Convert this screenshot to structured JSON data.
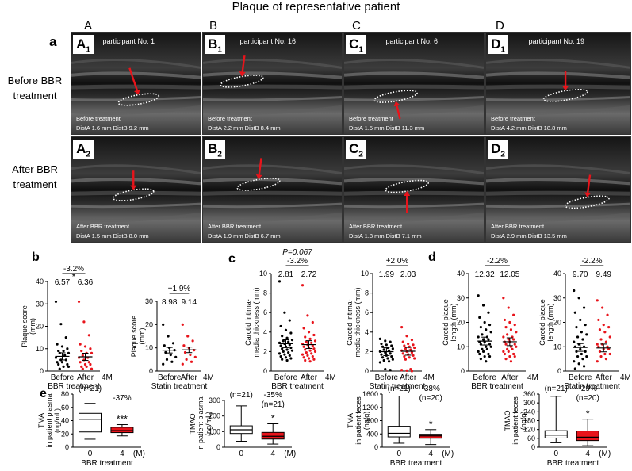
{
  "title": "Plaque of representative patient",
  "column_headers": [
    "A",
    "B",
    "C",
    "D"
  ],
  "section_labels": {
    "a": "a",
    "b": "b",
    "c": "c",
    "d": "d",
    "e": "e"
  },
  "row_labels": {
    "before": [
      "Before BBR",
      "treatment"
    ],
    "after": [
      "After BBR",
      "treatment"
    ]
  },
  "ultrasound": [
    {
      "id": "A1",
      "letter": "A",
      "sub": "1",
      "participant": "participant No. 1",
      "treatment": "Before treatment",
      "dist": "DistA 1.6 mm   DistB 9.2 mm"
    },
    {
      "id": "B1",
      "letter": "B",
      "sub": "1",
      "participant": "participant No. 16",
      "treatment": "Before treatment",
      "dist": "DistA 2.2 mm   DistB 8.4 mm"
    },
    {
      "id": "C1",
      "letter": "C",
      "sub": "1",
      "participant": "participant No. 6",
      "treatment": "Before treatment",
      "dist": "DistA 1.5 mm   DistB 11.3 mm"
    },
    {
      "id": "D1",
      "letter": "D",
      "sub": "1",
      "participant": "participant No. 19",
      "treatment": "Before treatment",
      "dist": "DistA 4.2 mm   DistB 18.8 mm"
    },
    {
      "id": "A2",
      "letter": "A",
      "sub": "2",
      "participant": "",
      "treatment": "After BBR treatment",
      "dist": "DistA 1.5 mm   DistB 8.0 mm"
    },
    {
      "id": "B2",
      "letter": "B",
      "sub": "2",
      "participant": "",
      "treatment": "After BBR treatment",
      "dist": "DistA 1.9 mm   DistB 6.7 mm"
    },
    {
      "id": "C2",
      "letter": "C",
      "sub": "2",
      "participant": "",
      "treatment": "After BBR treatment",
      "dist": "DistA 1.8 mm   DistB 7.1 mm"
    },
    {
      "id": "D2",
      "letter": "D",
      "sub": "2",
      "participant": "",
      "treatment": "After BBR treatment",
      "dist": "DistA 2.9 mm   DistB 13.5 mm"
    }
  ],
  "colors": {
    "before": "#000000",
    "after": "#e8141b",
    "box_red": "#e8141b",
    "arrow": "#e8141b"
  },
  "chart_data": [
    {
      "id": "b1",
      "type": "scatter",
      "ylabel": "Plaque score\n(mm)",
      "ylim": [
        0,
        40
      ],
      "yticks": [
        0,
        10,
        20,
        30,
        40
      ],
      "categories": [
        "Before",
        "After"
      ],
      "axis_suffix": "4M",
      "group_label": "BBR treatment",
      "means": [
        "6.57",
        "6.36"
      ],
      "change": "-3.2%",
      "sig": "*",
      "series": [
        {
          "values": [
            31,
            21,
            15,
            12,
            11,
            10,
            9,
            9,
            8,
            8,
            7,
            6,
            5,
            5,
            4,
            4,
            3,
            3,
            2,
            2,
            1
          ]
        },
        {
          "values": [
            31,
            22,
            16,
            12,
            11,
            10,
            9,
            8,
            8,
            7,
            6,
            6,
            5,
            4,
            4,
            3,
            3,
            2,
            2,
            1,
            1
          ]
        }
      ]
    },
    {
      "id": "b2",
      "type": "scatter",
      "ylabel": "Plaque score\n(mm)",
      "ylim": [
        0,
        30
      ],
      "yticks": [
        0,
        10,
        20,
        30
      ],
      "categories": [
        "Before",
        "After"
      ],
      "axis_suffix": "4M",
      "group_label": "Statin treatment",
      "means": [
        "8.98",
        "9.14"
      ],
      "change": "+1.9%",
      "sig": "",
      "series": [
        {
          "values": [
            20,
            15,
            12,
            11,
            10,
            9,
            8,
            7,
            6,
            5,
            4,
            3
          ]
        },
        {
          "values": [
            20,
            15,
            13,
            11,
            10,
            9,
            8,
            7,
            6,
            5,
            4,
            3
          ]
        }
      ]
    },
    {
      "id": "c1",
      "type": "scatter",
      "ylabel": "Carotid intima-\nmedia thickness (mm)",
      "ylim": [
        0,
        10
      ],
      "yticks": [
        0,
        2,
        4,
        6,
        8,
        10
      ],
      "categories": [
        "Before",
        "After"
      ],
      "axis_suffix": "4M",
      "group_label": "BBR treatment",
      "means": [
        "2.81",
        "2.72"
      ],
      "change": "-3.2%",
      "pvalue": "P=0.067",
      "series": [
        {
          "values": [
            9.2,
            6.0,
            5.2,
            4.6,
            4.2,
            3.9,
            3.6,
            3.4,
            3.2,
            3.1,
            3.0,
            2.9,
            2.8,
            2.7,
            2.6,
            2.5,
            2.4,
            2.3,
            2.2,
            2.1,
            2.0,
            1.9,
            1.8,
            1.7,
            1.6,
            1.5,
            1.4,
            1.3,
            1.2,
            1.1
          ]
        },
        {
          "values": [
            8.8,
            5.7,
            5.0,
            4.4,
            4.0,
            3.7,
            3.5,
            3.3,
            3.1,
            3.0,
            2.9,
            2.8,
            2.7,
            2.6,
            2.5,
            2.4,
            2.3,
            2.2,
            2.1,
            2.0,
            1.9,
            1.8,
            1.7,
            1.6,
            1.5,
            1.4,
            1.3,
            1.2,
            1.1,
            1.0
          ]
        }
      ]
    },
    {
      "id": "c2",
      "type": "scatter",
      "ylabel": "Carotid intima-\nmedia thickness (mm)",
      "ylim": [
        0,
        10
      ],
      "yticks": [
        0,
        2,
        4,
        6,
        8,
        10
      ],
      "categories": [
        "Before",
        "After"
      ],
      "axis_suffix": "4M",
      "group_label": "Statin treatment",
      "means": [
        "1.99",
        "2.03"
      ],
      "change": "+2.0%",
      "series": [
        {
          "values": [
            3.3,
            3.1,
            3.0,
            2.8,
            2.7,
            2.6,
            2.5,
            2.4,
            2.3,
            2.2,
            2.1,
            2.0,
            1.9,
            1.8,
            1.7,
            1.6,
            1.5,
            1.4,
            1.3,
            1.2,
            1.1,
            1.0,
            0.9,
            0.2,
            0.1
          ]
        },
        {
          "values": [
            4.5,
            3.6,
            3.2,
            3.0,
            2.8,
            2.7,
            2.6,
            2.5,
            2.4,
            2.3,
            2.2,
            2.1,
            2.0,
            1.9,
            1.8,
            1.7,
            1.6,
            1.5,
            1.4,
            1.3,
            1.2,
            0.2,
            0.1,
            0.05,
            0.0
          ]
        }
      ]
    },
    {
      "id": "d1",
      "type": "scatter",
      "ylabel": "Carotid plaque\nlength (mm)",
      "ylim": [
        0,
        40
      ],
      "yticks": [
        0,
        10,
        20,
        30,
        40
      ],
      "categories": [
        "Before",
        "After"
      ],
      "axis_suffix": "4M",
      "group_label": "BBR treatment",
      "means": [
        "12.32",
        "12.05"
      ],
      "change": "-2.2%",
      "series": [
        {
          "values": [
            31,
            27,
            24,
            22,
            20,
            19,
            18,
            17,
            16,
            15,
            14,
            14,
            13,
            13,
            12,
            12,
            11,
            11,
            10,
            10,
            9,
            9,
            8,
            8,
            7,
            7,
            6,
            6,
            5,
            4
          ]
        },
        {
          "values": [
            30,
            26,
            23,
            21,
            20,
            19,
            18,
            17,
            16,
            15,
            14,
            14,
            13,
            13,
            12,
            12,
            11,
            11,
            10,
            10,
            9,
            9,
            8,
            8,
            7,
            7,
            6,
            6,
            5,
            4
          ]
        }
      ]
    },
    {
      "id": "d2",
      "type": "scatter",
      "ylabel": "Carotid plaque\nlength (mm)",
      "ylim": [
        0,
        40
      ],
      "yticks": [
        0,
        10,
        20,
        30,
        40
      ],
      "categories": [
        "Before",
        "After"
      ],
      "axis_suffix": "4M",
      "group_label": "Statin treatment",
      "means": [
        "9.70",
        "9.49"
      ],
      "change": "-2.2%",
      "series": [
        {
          "values": [
            33,
            30,
            26,
            24,
            21,
            19,
            18,
            16,
            15,
            14,
            13,
            12,
            11,
            10,
            10,
            9,
            8,
            8,
            7,
            6,
            6,
            5,
            4,
            3,
            2,
            1
          ]
        },
        {
          "values": [
            29,
            26,
            23,
            21,
            19,
            18,
            17,
            16,
            14,
            13,
            12,
            11,
            11,
            10,
            10,
            9,
            9,
            8,
            7,
            7,
            6,
            5,
            4
          ]
        }
      ]
    },
    {
      "id": "e1",
      "type": "box",
      "ylabel": "TMA\nin patient plasma\n(ng/mL)",
      "ylim": [
        0,
        80
      ],
      "yticks": [
        0,
        20,
        40,
        60,
        80
      ],
      "categories": [
        "0",
        "4"
      ],
      "unit": "(M)",
      "group_label": "BBR treatment",
      "n": [
        "(n=21)",
        ""
      ],
      "change": "-37%",
      "sig": "***",
      "boxes": [
        {
          "min": 12,
          "q1": 23,
          "median": 42,
          "q3": 51,
          "max": 66,
          "fill": "#ffffff"
        },
        {
          "min": 17,
          "q1": 22,
          "median": 25,
          "q3": 30,
          "max": 34,
          "fill": "#e8141b"
        }
      ]
    },
    {
      "id": "e2",
      "type": "box",
      "ylabel": "TMAO\nin patient plasma\n(ng/mL)",
      "ylim": [
        0,
        300
      ],
      "yticks": [
        0,
        100,
        200,
        300
      ],
      "categories": [
        "0",
        "4"
      ],
      "unit": "(M)",
      "group_label": "",
      "n": [
        "(n=21)",
        "(n=21)"
      ],
      "change": "-35%",
      "sig": "*",
      "boxes": [
        {
          "min": 38,
          "q1": 88,
          "median": 112,
          "q3": 137,
          "max": 265,
          "fill": "#ffffff"
        },
        {
          "min": 20,
          "q1": 52,
          "median": 70,
          "q3": 95,
          "max": 150,
          "fill": "#e8141b"
        }
      ]
    },
    {
      "id": "e3",
      "type": "box",
      "ylabel": "TMA\nin patient feces\n(ng/g)",
      "ylim": [
        0,
        1600
      ],
      "yticks": [
        0,
        400,
        800,
        1200,
        1600
      ],
      "categories": [
        "0",
        "4"
      ],
      "unit": "(M)",
      "group_label": "BBR treatment",
      "n": [
        "(n=21)",
        "(n=20)"
      ],
      "change": "-38%",
      "sig": "*",
      "boxes": [
        {
          "min": 120,
          "q1": 310,
          "median": 420,
          "q3": 630,
          "max": 1540,
          "fill": "#ffffff"
        },
        {
          "min": 80,
          "q1": 270,
          "median": 340,
          "q3": 390,
          "max": 530,
          "fill": "#e8141b"
        }
      ]
    },
    {
      "id": "e4",
      "type": "box",
      "ylabel": "TMAO\nin patient feces\n(ng/g)",
      "ylim": [
        0,
        360
      ],
      "yticks": [
        0,
        60,
        120,
        180,
        240,
        300,
        360
      ],
      "categories": [
        "0",
        "4"
      ],
      "unit": "(M)",
      "group_label": "BBR treatment",
      "n": [
        "(n=21)",
        "(n=20)"
      ],
      "change": "-29%",
      "sig": "*",
      "boxes": [
        {
          "min": 30,
          "q1": 62,
          "median": 82,
          "q3": 112,
          "max": 345,
          "fill": "#ffffff"
        },
        {
          "min": 10,
          "q1": 45,
          "median": 68,
          "q3": 110,
          "max": 190,
          "fill": "#e8141b"
        }
      ]
    }
  ]
}
